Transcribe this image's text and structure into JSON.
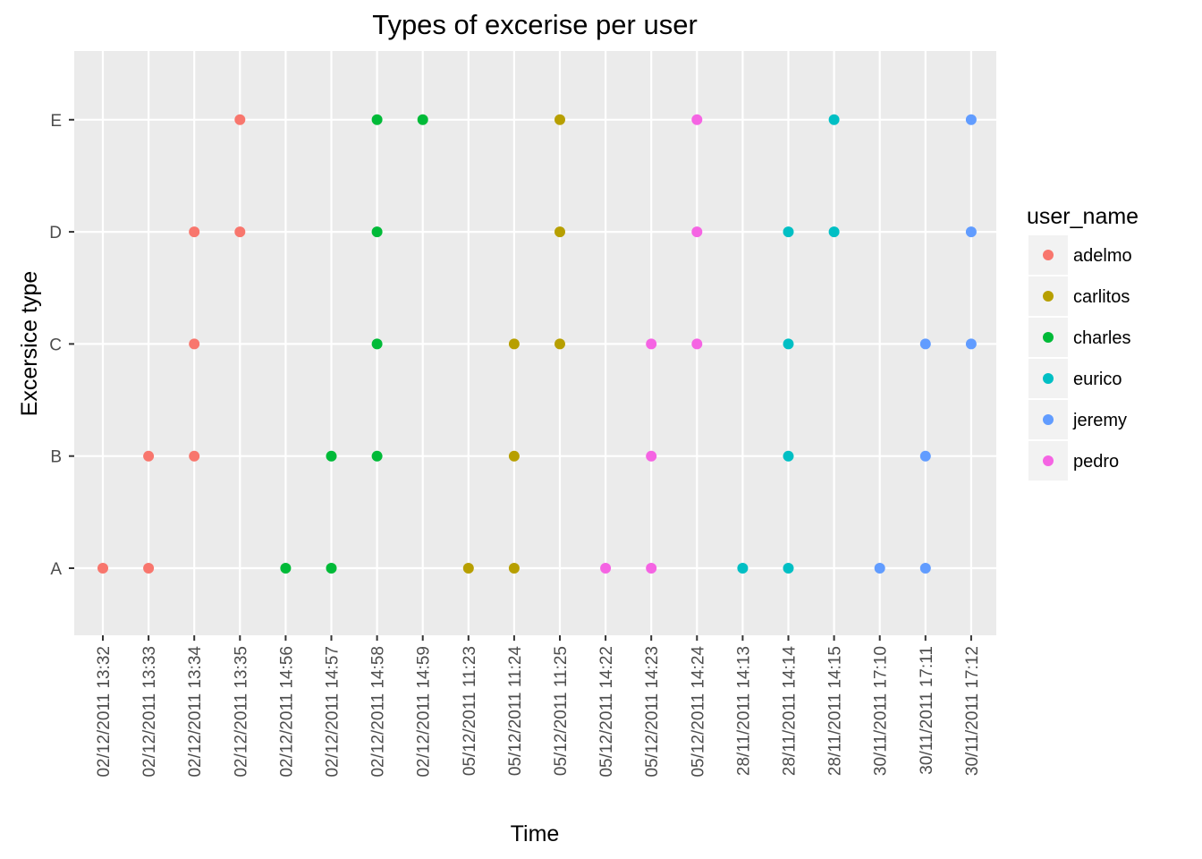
{
  "chart_data": {
    "type": "scatter",
    "title": "Types of excerise per user",
    "xlabel": "Time",
    "ylabel": "Excersice type",
    "x_categories": [
      "02/12/2011 13:32",
      "02/12/2011 13:33",
      "02/12/2011 13:34",
      "02/12/2011 13:35",
      "02/12/2011 14:56",
      "02/12/2011 14:57",
      "02/12/2011 14:58",
      "02/12/2011 14:59",
      "05/12/2011 11:23",
      "05/12/2011 11:24",
      "05/12/2011 11:25",
      "05/12/2011 14:22",
      "05/12/2011 14:23",
      "05/12/2011 14:24",
      "28/11/2011 14:13",
      "28/11/2011 14:14",
      "28/11/2011 14:15",
      "30/11/2011 17:10",
      "30/11/2011 17:11",
      "30/11/2011 17:12"
    ],
    "y_categories": [
      "A",
      "B",
      "C",
      "D",
      "E"
    ],
    "grid": true,
    "legend": {
      "title": "user_name",
      "position": "right"
    },
    "series": [
      {
        "name": "adelmo",
        "color": "#F8766D",
        "points": [
          {
            "x": "02/12/2011 13:32",
            "y": "A"
          },
          {
            "x": "02/12/2011 13:33",
            "y": "A"
          },
          {
            "x": "02/12/2011 13:33",
            "y": "B"
          },
          {
            "x": "02/12/2011 13:34",
            "y": "B"
          },
          {
            "x": "02/12/2011 13:34",
            "y": "C"
          },
          {
            "x": "02/12/2011 13:34",
            "y": "D"
          },
          {
            "x": "02/12/2011 13:35",
            "y": "D"
          },
          {
            "x": "02/12/2011 13:35",
            "y": "E"
          }
        ]
      },
      {
        "name": "carlitos",
        "color": "#B79F00",
        "points": [
          {
            "x": "05/12/2011 11:23",
            "y": "A"
          },
          {
            "x": "05/12/2011 11:24",
            "y": "A"
          },
          {
            "x": "05/12/2011 11:24",
            "y": "B"
          },
          {
            "x": "05/12/2011 11:24",
            "y": "C"
          },
          {
            "x": "05/12/2011 11:25",
            "y": "C"
          },
          {
            "x": "05/12/2011 11:25",
            "y": "D"
          },
          {
            "x": "05/12/2011 11:25",
            "y": "E"
          }
        ]
      },
      {
        "name": "charles",
        "color": "#00BA38",
        "points": [
          {
            "x": "02/12/2011 14:56",
            "y": "A"
          },
          {
            "x": "02/12/2011 14:57",
            "y": "A"
          },
          {
            "x": "02/12/2011 14:57",
            "y": "B"
          },
          {
            "x": "02/12/2011 14:58",
            "y": "B"
          },
          {
            "x": "02/12/2011 14:58",
            "y": "C"
          },
          {
            "x": "02/12/2011 14:58",
            "y": "D"
          },
          {
            "x": "02/12/2011 14:58",
            "y": "E"
          },
          {
            "x": "02/12/2011 14:59",
            "y": "E"
          }
        ]
      },
      {
        "name": "eurico",
        "color": "#00BFC4",
        "points": [
          {
            "x": "28/11/2011 14:13",
            "y": "A"
          },
          {
            "x": "28/11/2011 14:14",
            "y": "A"
          },
          {
            "x": "28/11/2011 14:14",
            "y": "B"
          },
          {
            "x": "28/11/2011 14:14",
            "y": "C"
          },
          {
            "x": "28/11/2011 14:14",
            "y": "D"
          },
          {
            "x": "28/11/2011 14:15",
            "y": "D"
          },
          {
            "x": "28/11/2011 14:15",
            "y": "E"
          }
        ]
      },
      {
        "name": "jeremy",
        "color": "#619CFF",
        "points": [
          {
            "x": "30/11/2011 17:10",
            "y": "A"
          },
          {
            "x": "30/11/2011 17:11",
            "y": "A"
          },
          {
            "x": "30/11/2011 17:11",
            "y": "B"
          },
          {
            "x": "30/11/2011 17:11",
            "y": "C"
          },
          {
            "x": "30/11/2011 17:12",
            "y": "C"
          },
          {
            "x": "30/11/2011 17:12",
            "y": "D"
          },
          {
            "x": "30/11/2011 17:12",
            "y": "E"
          }
        ]
      },
      {
        "name": "pedro",
        "color": "#F564E3",
        "points": [
          {
            "x": "05/12/2011 14:22",
            "y": "A"
          },
          {
            "x": "05/12/2011 14:23",
            "y": "A"
          },
          {
            "x": "05/12/2011 14:23",
            "y": "B"
          },
          {
            "x": "05/12/2011 14:23",
            "y": "C"
          },
          {
            "x": "05/12/2011 14:24",
            "y": "C"
          },
          {
            "x": "05/12/2011 14:24",
            "y": "D"
          },
          {
            "x": "05/12/2011 14:24",
            "y": "E"
          }
        ]
      }
    ]
  }
}
